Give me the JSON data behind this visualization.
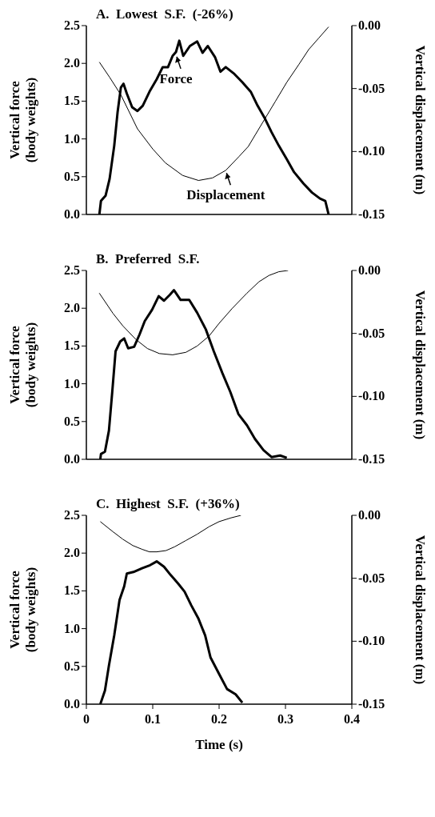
{
  "chart_data": [
    {
      "type": "line",
      "title": "A.  Lowest  S.F.  (-26%)",
      "ylabel": "Vertical force\n(body weights)",
      "y2label": "Vertical displacement (m)",
      "xlim": [
        0,
        0.4
      ],
      "xticks": [
        0,
        0.1,
        0.2,
        0.3,
        0.4
      ],
      "ylim": [
        0,
        2.5
      ],
      "yticks": [
        {
          "value": 0,
          "label": "0.0"
        },
        0.5,
        {
          "value": 1,
          "label": "1.0"
        },
        1.5,
        {
          "value": 2,
          "label": "2.0"
        },
        2.5
      ],
      "y2lim": [
        -0.15,
        0
      ],
      "y2ticks": [
        {
          "value": -0.15,
          "label": "-0.15"
        },
        {
          "value": -0.1,
          "label": "-0.10"
        },
        {
          "value": -0.05,
          "label": "-0.05"
        },
        {
          "value": 0,
          "label": "0.00"
        }
      ],
      "tick_labels": "y",
      "marker": "none",
      "line_style": "solid",
      "annotations": [
        {
          "text": "Force",
          "x": 0.135,
          "y": 2.12
        },
        {
          "text": "Displacement",
          "x": 0.21,
          "y": 0.58
        }
      ],
      "series": [
        {
          "color": "#000000",
          "x": [
            0.0196,
            0.022,
            0.029,
            0.035,
            0.042,
            0.047,
            0.052,
            0.056,
            0.061,
            0.069,
            0.077,
            0.085,
            0.096,
            0.106,
            0.115,
            0.123,
            0.13,
            0.135,
            0.14,
            0.146,
            0.156,
            0.167,
            0.175,
            0.183,
            0.194,
            0.202,
            0.21,
            0.223,
            0.235,
            0.248,
            0.258,
            0.269,
            0.279,
            0.29,
            0.302,
            0.313,
            0.327,
            0.34,
            0.352,
            0.36,
            0.365
          ],
          "values": [
            0,
            0.18,
            0.25,
            0.47,
            0.91,
            1.35,
            1.68,
            1.73,
            1.6,
            1.42,
            1.37,
            1.44,
            1.64,
            1.79,
            1.95,
            1.95,
            2.1,
            2.15,
            2.3,
            2.1,
            2.23,
            2.29,
            2.14,
            2.23,
            2.08,
            1.89,
            1.95,
            1.86,
            1.75,
            1.62,
            1.44,
            1.27,
            1.09,
            0.91,
            0.73,
            0.56,
            0.41,
            0.29,
            0.21,
            0.18,
            0
          ]
        },
        {
          "color": "#000000",
          "axis": "y2",
          "x": [
            0.0196,
            0.035,
            0.052,
            0.077,
            0.1,
            0.119,
            0.145,
            0.169,
            0.19,
            0.21,
            0.23,
            0.244,
            0.269,
            0.285,
            0.302,
            0.32,
            0.335,
            0.35,
            0.365
          ],
          "values": [
            -0.029,
            -0.041,
            -0.055,
            -0.082,
            -0.098,
            -0.109,
            -0.119,
            -0.123,
            -0.121,
            -0.115,
            -0.104,
            -0.096,
            -0.074,
            -0.06,
            -0.045,
            -0.031,
            -0.019,
            -0.01,
            -0.001
          ]
        }
      ]
    },
    {
      "type": "line",
      "title": "B.  Preferred  S.F.",
      "ylabel": "Vertical force\n(body weights)",
      "y2label": "Vertical displacement (m)",
      "xlim": [
        0,
        0.4
      ],
      "xticks": [
        0,
        0.1,
        0.2,
        0.3,
        0.4
      ],
      "ylim": [
        0,
        2.5
      ],
      "yticks": [
        {
          "value": 0,
          "label": "0.0"
        },
        0.5,
        {
          "value": 1,
          "label": "1.0"
        },
        1.5,
        {
          "value": 2,
          "label": "2.0"
        },
        2.5
      ],
      "y2lim": [
        -0.15,
        0
      ],
      "y2ticks": [
        {
          "value": -0.15,
          "label": "-0.15"
        },
        {
          "value": -0.1,
          "label": "-0.10"
        },
        {
          "value": -0.05,
          "label": "-0.05"
        },
        {
          "value": 0,
          "label": "0.00"
        }
      ],
      "tick_labels": "y",
      "marker": "none",
      "line_style": "solid",
      "series": [
        {
          "color": "#000000",
          "x": [
            0.021,
            0.022,
            0.028,
            0.034,
            0.039,
            0.044,
            0.051,
            0.057,
            0.063,
            0.072,
            0.08,
            0.088,
            0.099,
            0.109,
            0.117,
            0.126,
            0.132,
            0.142,
            0.155,
            0.167,
            0.18,
            0.192,
            0.205,
            0.217,
            0.229,
            0.242,
            0.254,
            0.267,
            0.279,
            0.292,
            0.302
          ],
          "values": [
            0,
            0.07,
            0.1,
            0.38,
            0.89,
            1.43,
            1.56,
            1.6,
            1.47,
            1.49,
            1.65,
            1.83,
            1.98,
            2.16,
            2.1,
            2.18,
            2.24,
            2.11,
            2.11,
            1.94,
            1.72,
            1.43,
            1.14,
            0.89,
            0.6,
            0.45,
            0.27,
            0.12,
            0.03,
            0.05,
            0.02
          ]
        },
        {
          "color": "#000000",
          "axis": "y2",
          "x": [
            0.0195,
            0.04,
            0.055,
            0.075,
            0.092,
            0.11,
            0.13,
            0.15,
            0.167,
            0.185,
            0.2,
            0.22,
            0.242,
            0.26,
            0.275,
            0.29,
            0.304
          ],
          "values": [
            -0.018,
            -0.034,
            -0.044,
            -0.055,
            -0.062,
            -0.066,
            -0.067,
            -0.065,
            -0.06,
            -0.052,
            -0.042,
            -0.03,
            -0.018,
            -0.009,
            -0.004,
            -0.001,
            0
          ]
        }
      ]
    },
    {
      "type": "line",
      "title": "C.  Highest  S.F.  (+36%)",
      "xlabel": "Time  (s)",
      "ylabel": "Vertical force\n(body weights)",
      "y2label": "Vertical displacement (m)",
      "xlim": [
        0,
        0.4
      ],
      "xticks": [
        0,
        0.1,
        0.2,
        0.3,
        0.4
      ],
      "ylim": [
        0,
        2.5
      ],
      "yticks": [
        {
          "value": 0,
          "label": "0.0"
        },
        0.5,
        {
          "value": 1,
          "label": "1.0"
        },
        1.5,
        {
          "value": 2,
          "label": "2.0"
        },
        2.5
      ],
      "y2lim": [
        -0.15,
        0
      ],
      "y2ticks": [
        {
          "value": -0.15,
          "label": "-0.15"
        },
        {
          "value": -0.1,
          "label": "-0.10"
        },
        {
          "value": -0.05,
          "label": "-0.05"
        },
        {
          "value": 0,
          "label": "0.00"
        }
      ],
      "marker": "none",
      "line_style": "solid",
      "series": [
        {
          "color": "#000000",
          "x": [
            0.021,
            0.028,
            0.034,
            0.042,
            0.05,
            0.057,
            0.061,
            0.071,
            0.084,
            0.096,
            0.106,
            0.117,
            0.127,
            0.138,
            0.148,
            0.158,
            0.169,
            0.179,
            0.187,
            0.2,
            0.212,
            0.225,
            0.235
          ],
          "values": [
            0,
            0.18,
            0.51,
            0.91,
            1.38,
            1.56,
            1.73,
            1.75,
            1.8,
            1.84,
            1.89,
            1.82,
            1.71,
            1.6,
            1.49,
            1.31,
            1.13,
            0.91,
            0.62,
            0.4,
            0.2,
            0.13,
            0.02
          ]
        },
        {
          "color": "#000000",
          "axis": "y2",
          "x": [
            0.021,
            0.04,
            0.055,
            0.07,
            0.084,
            0.095,
            0.106,
            0.12,
            0.133,
            0.15,
            0.167,
            0.185,
            0.2,
            0.218,
            0.233
          ],
          "values": [
            -0.005,
            -0.013,
            -0.019,
            -0.024,
            -0.027,
            -0.029,
            -0.029,
            -0.028,
            -0.025,
            -0.02,
            -0.015,
            -0.009,
            -0.005,
            -0.002,
            0
          ]
        }
      ]
    }
  ]
}
